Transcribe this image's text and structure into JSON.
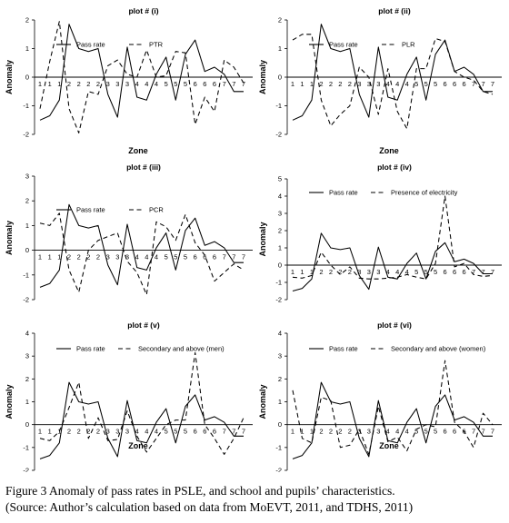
{
  "caption": {
    "line1": "Figure 3   Anomaly of pass rates in PSLE, and school and pupils’ characteristics.",
    "line2": "(Source: Author’s calculation based on data from MoEVT, 2011, and TDHS, 2011)"
  },
  "chart_data": [
    {
      "type": "line",
      "title": "plot # (i)",
      "xlabel": "Zone",
      "ylabel": "Anomaly",
      "ylim": [
        -2,
        2
      ],
      "yticks": [
        -2,
        -1,
        0,
        1,
        2
      ],
      "x_zone_labels": [
        "1",
        "1",
        "1",
        "2",
        "2",
        "2",
        "2",
        "3",
        "3",
        "3",
        "4",
        "4",
        "4",
        "5",
        "5",
        "5",
        "6",
        "6",
        "6",
        "7",
        "7",
        "7"
      ],
      "legend_position": "top",
      "series": [
        {
          "name": "Pass rate",
          "style": "solid",
          "values": [
            -1.5,
            -1.35,
            -0.8,
            1.85,
            1.0,
            0.9,
            1.0,
            -0.6,
            -1.4,
            1.05,
            -0.7,
            -0.8,
            0.1,
            0.7,
            -0.8,
            0.8,
            1.3,
            0.2,
            0.35,
            0.1,
            -0.5,
            -0.5
          ]
        },
        {
          "name": "PTR",
          "style": "dashed",
          "values": [
            -1.1,
            0.55,
            1.95,
            -1.1,
            -1.95,
            -0.5,
            -0.6,
            0.4,
            0.6,
            0.1,
            0.0,
            0.95,
            0.0,
            0.05,
            0.9,
            0.85,
            -1.65,
            -0.7,
            -1.2,
            0.6,
            0.35,
            -0.2
          ]
        }
      ]
    },
    {
      "type": "line",
      "title": "plot # (ii)",
      "xlabel": "Zone",
      "ylabel": "Anomaly",
      "ylim": [
        -2,
        2
      ],
      "yticks": [
        -2,
        -1,
        0,
        1,
        2
      ],
      "x_zone_labels": [
        "1",
        "1",
        "1",
        "2",
        "2",
        "2",
        "2",
        "3",
        "3",
        "3",
        "4",
        "4",
        "4",
        "5",
        "5",
        "5",
        "6",
        "6",
        "6",
        "7",
        "7",
        "7"
      ],
      "legend_position": "top",
      "series": [
        {
          "name": "Pass rate",
          "style": "solid",
          "values": [
            -1.5,
            -1.35,
            -0.8,
            1.85,
            1.0,
            0.9,
            1.0,
            -0.6,
            -1.4,
            1.05,
            -0.7,
            -0.8,
            0.1,
            0.7,
            -0.8,
            0.8,
            1.3,
            0.2,
            0.35,
            0.1,
            -0.5,
            -0.5
          ]
        },
        {
          "name": "PLR",
          "style": "dashed",
          "values": [
            1.3,
            1.5,
            1.5,
            -0.8,
            -1.7,
            -1.3,
            -1.0,
            0.35,
            0.0,
            -1.3,
            0.3,
            -1.2,
            -1.8,
            0.3,
            0.3,
            1.35,
            1.25,
            0.2,
            0.0,
            -0.1,
            -0.5,
            -0.6
          ]
        }
      ]
    },
    {
      "type": "line",
      "title": "plot # (iii)",
      "xlabel": "",
      "ylabel": "Anomaly",
      "ylim": [
        -2,
        3
      ],
      "yticks": [
        -2,
        -1,
        0,
        1,
        2,
        3
      ],
      "x_zone_labels": [
        "1",
        "1",
        "1",
        "2",
        "2",
        "2",
        "2",
        "3",
        "3",
        "3",
        "4",
        "4",
        "4",
        "5",
        "5",
        "5",
        "6",
        "6",
        "6",
        "7",
        "7",
        "7"
      ],
      "legend_position": "top",
      "series": [
        {
          "name": "Pass rate",
          "style": "solid",
          "values": [
            -1.5,
            -1.35,
            -0.8,
            1.85,
            1.0,
            0.9,
            1.0,
            -0.6,
            -1.4,
            1.05,
            -0.7,
            -0.8,
            0.1,
            0.7,
            -0.8,
            0.8,
            1.3,
            0.2,
            0.35,
            0.1,
            -0.5,
            -0.5
          ]
        },
        {
          "name": "PCR",
          "style": "dashed",
          "values": [
            1.1,
            1.0,
            1.5,
            -0.8,
            -1.7,
            0.0,
            0.4,
            0.55,
            0.7,
            -0.45,
            -0.9,
            -1.8,
            1.15,
            0.95,
            0.4,
            1.45,
            0.3,
            -0.2,
            -1.25,
            -0.9,
            -0.55,
            -0.8
          ]
        }
      ]
    },
    {
      "type": "line",
      "title": "plot # (iv)",
      "xlabel": "",
      "ylabel": "Anomaly",
      "ylim": [
        -2,
        5
      ],
      "yticks": [
        -2,
        -1,
        0,
        1,
        2,
        3,
        4,
        5
      ],
      "x_zone_labels": [
        "1",
        "1",
        "1",
        "2",
        "2",
        "2",
        "2",
        "3",
        "3",
        "3",
        "4",
        "4",
        "4",
        "5",
        "5",
        "5",
        "6",
        "6",
        "6",
        "7",
        "7",
        "7"
      ],
      "legend_position": "top",
      "series": [
        {
          "name": "Pass rate",
          "style": "solid",
          "values": [
            -1.5,
            -1.35,
            -0.8,
            1.85,
            1.0,
            0.9,
            1.0,
            -0.6,
            -1.4,
            1.05,
            -0.7,
            -0.8,
            0.1,
            0.7,
            -0.8,
            0.8,
            1.3,
            0.2,
            0.35,
            0.1,
            -0.5,
            -0.5
          ]
        },
        {
          "name": "Presence of electricity",
          "style": "dashed",
          "values": [
            -0.7,
            -0.75,
            -0.6,
            0.75,
            0.0,
            -0.55,
            -0.1,
            -0.75,
            -0.8,
            -0.8,
            -0.75,
            -0.7,
            -0.55,
            -0.7,
            -0.8,
            0.1,
            4.0,
            -0.1,
            0.1,
            -0.55,
            -0.65,
            -0.6
          ]
        }
      ]
    },
    {
      "type": "line",
      "title": "plot # (v)",
      "xlabel": "Zone",
      "ylabel": "Anomaly",
      "ylim": [
        -2,
        4
      ],
      "yticks": [
        -2,
        -1,
        0,
        1,
        2,
        3,
        4
      ],
      "x_zone_labels": [
        "1",
        "1",
        "1",
        "2",
        "2",
        "2",
        "2",
        "3",
        "3",
        "3",
        "4",
        "4",
        "4",
        "5",
        "5",
        "5",
        "6",
        "6",
        "6",
        "7",
        "7",
        "7"
      ],
      "legend_position": "top",
      "series": [
        {
          "name": "Pass rate",
          "style": "solid",
          "values": [
            -1.5,
            -1.35,
            -0.8,
            1.85,
            1.0,
            0.9,
            1.0,
            -0.6,
            -1.4,
            1.05,
            -0.7,
            -0.8,
            0.1,
            0.7,
            -0.8,
            0.8,
            1.3,
            0.2,
            0.35,
            0.1,
            -0.5,
            -0.5
          ]
        },
        {
          "name": "Secondary and above (men)",
          "style": "dashed",
          "values": [
            -0.6,
            -0.7,
            -0.3,
            0.75,
            1.85,
            -0.6,
            0.3,
            -0.7,
            -0.65,
            0.6,
            -0.5,
            -1.2,
            -0.6,
            0.0,
            0.2,
            0.2,
            3.15,
            0.0,
            -0.6,
            -1.3,
            -0.6,
            0.3
          ]
        }
      ]
    },
    {
      "type": "line",
      "title": "plot # (vi)",
      "xlabel": "Zone",
      "ylabel": "Anomaly",
      "ylim": [
        -2,
        4
      ],
      "yticks": [
        -2,
        -1,
        0,
        1,
        2,
        3,
        4
      ],
      "x_zone_labels": [
        "1",
        "1",
        "1",
        "2",
        "2",
        "2",
        "2",
        "3",
        "3",
        "3",
        "4",
        "4",
        "4",
        "5",
        "5",
        "5",
        "6",
        "6",
        "6",
        "7",
        "7",
        "7"
      ],
      "legend_position": "top",
      "series": [
        {
          "name": "Pass rate",
          "style": "solid",
          "values": [
            -1.5,
            -1.35,
            -0.8,
            1.85,
            1.0,
            0.9,
            1.0,
            -0.6,
            -1.4,
            1.05,
            -0.7,
            -0.8,
            0.1,
            0.7,
            -0.8,
            0.8,
            1.3,
            0.2,
            0.35,
            0.1,
            -0.5,
            -0.5
          ]
        },
        {
          "name": "Secondary and above (women)",
          "style": "dashed",
          "values": [
            1.5,
            -0.6,
            -0.8,
            1.2,
            1.05,
            -1.0,
            -0.9,
            -0.2,
            -1.3,
            0.8,
            -0.75,
            -0.55,
            -1.15,
            -0.2,
            0.0,
            -0.1,
            2.8,
            0.1,
            -0.3,
            -1.0,
            0.5,
            0.0
          ]
        }
      ]
    }
  ]
}
